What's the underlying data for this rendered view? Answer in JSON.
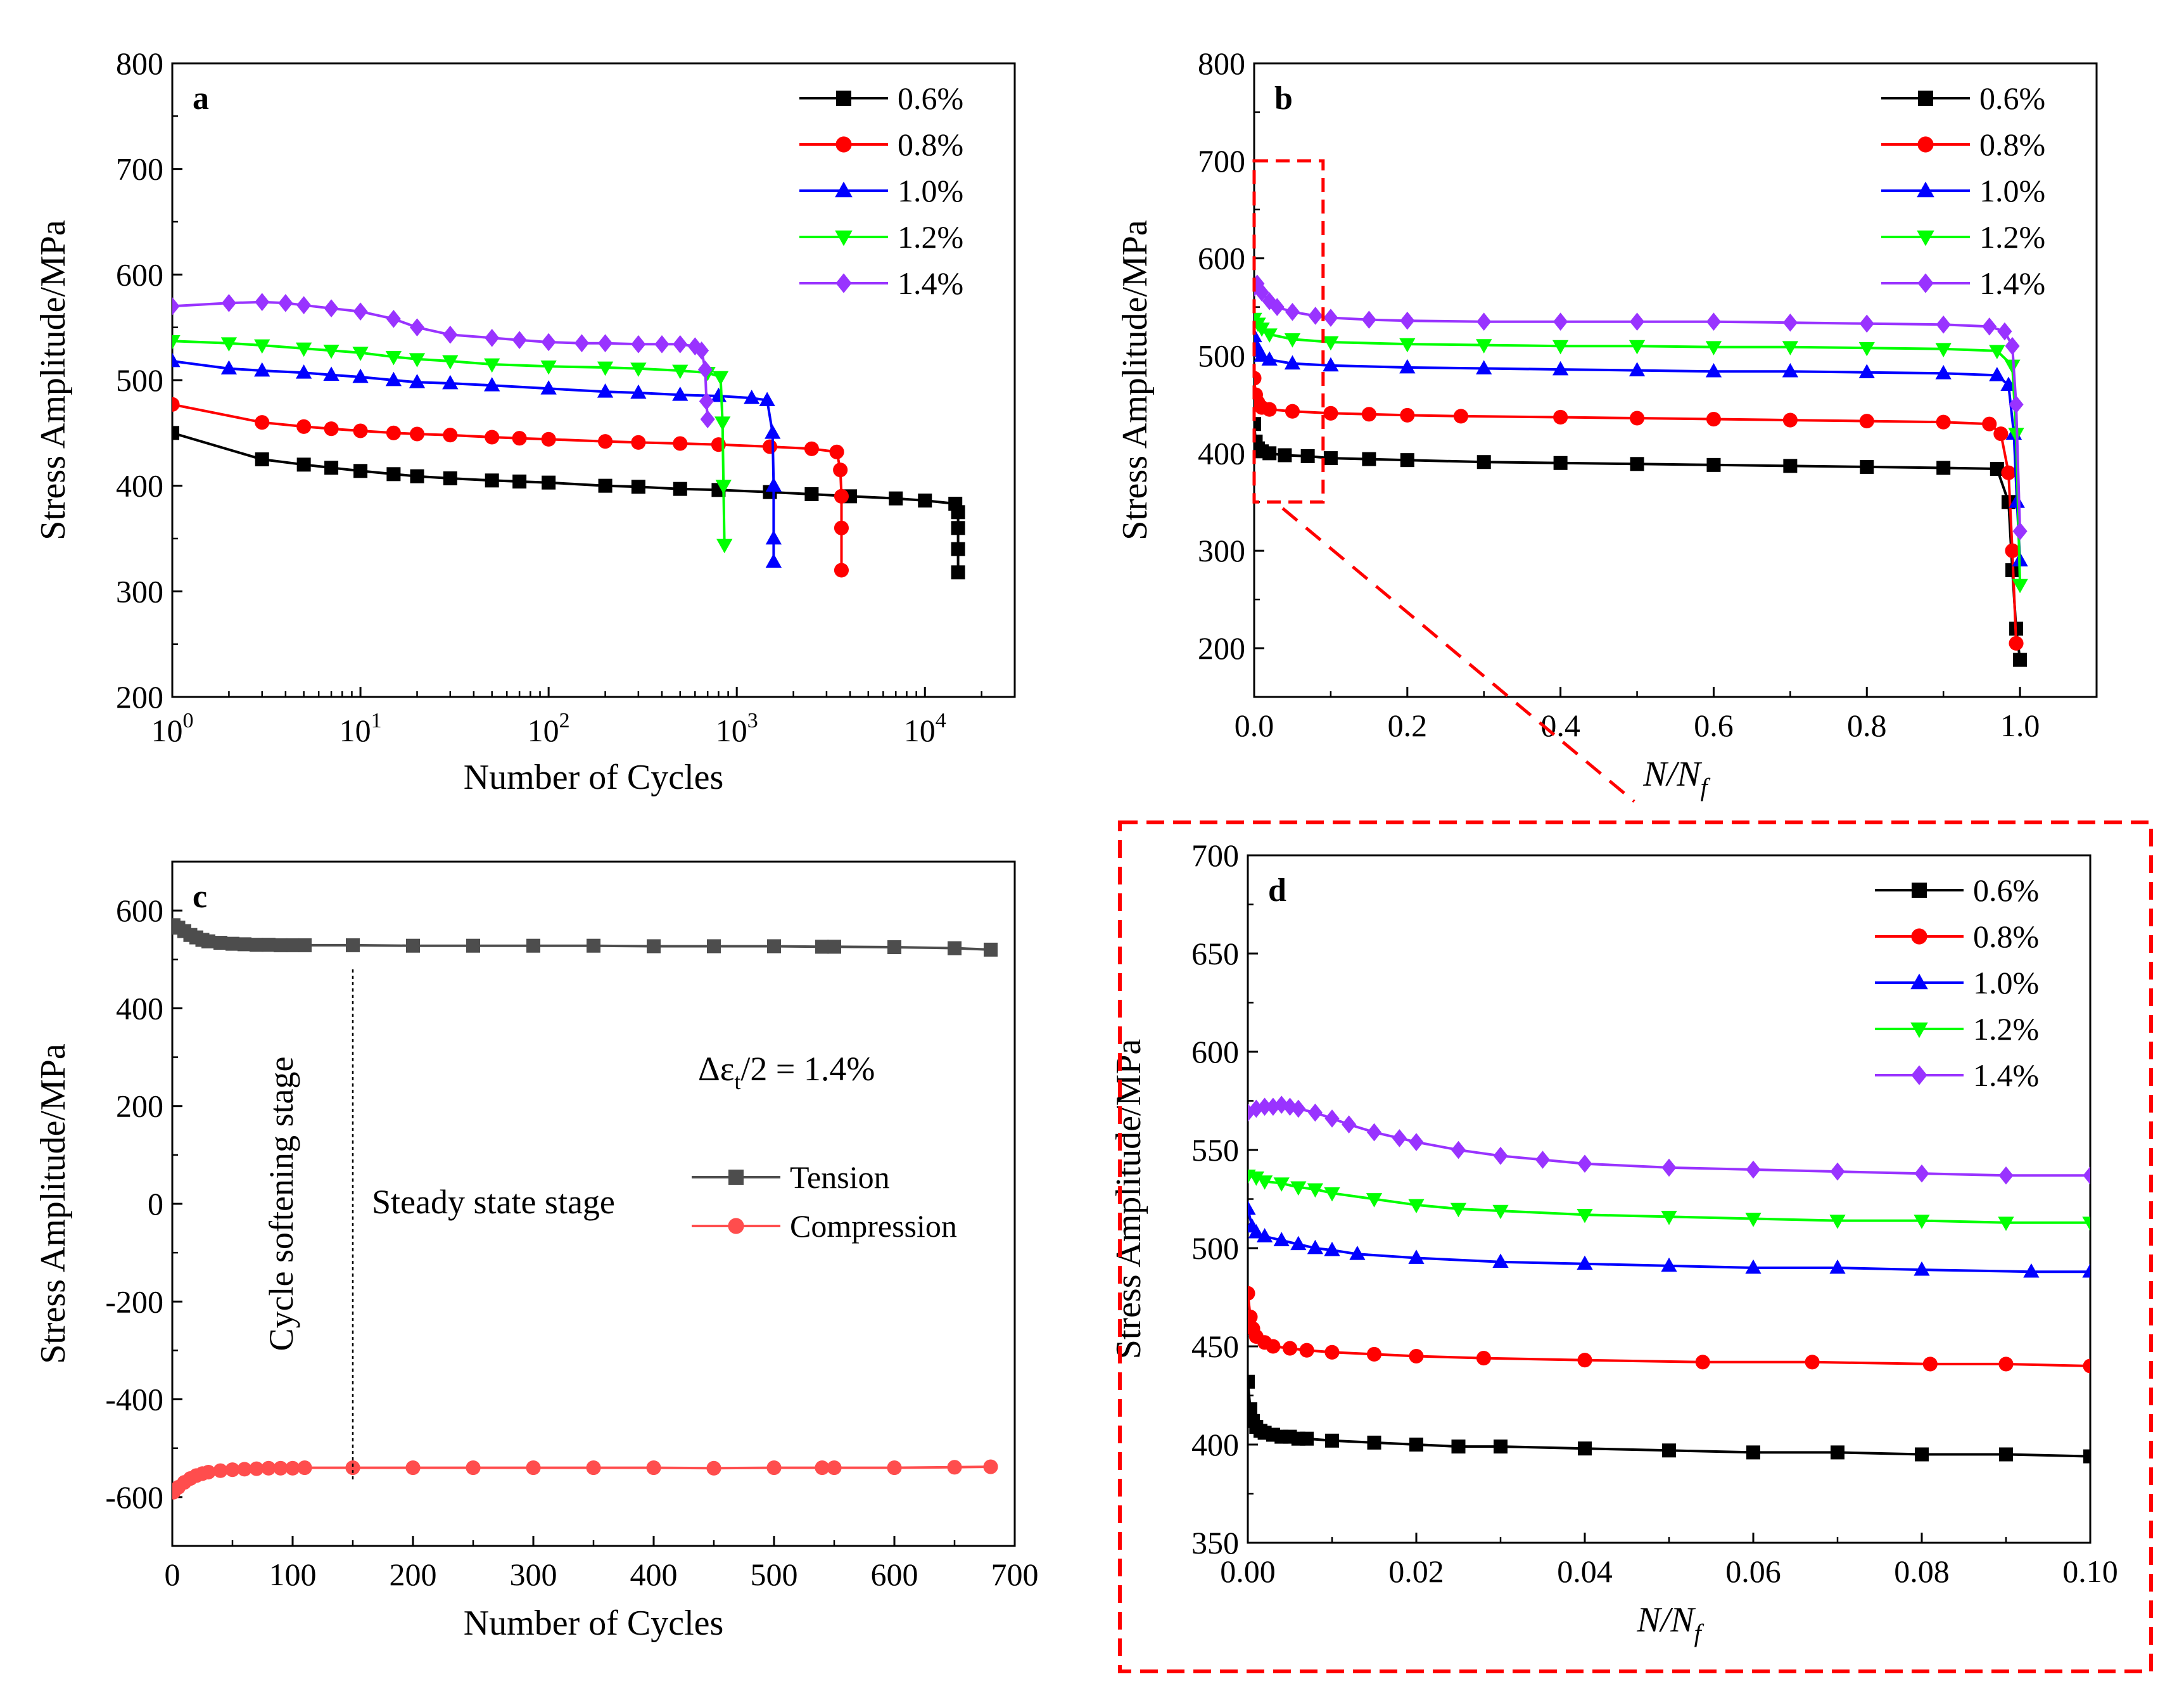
{
  "figure": {
    "zoom_style": {
      "color": "#ff0000"
    }
  },
  "chart_data": [
    {
      "id": "a",
      "panel_label": "a",
      "type": "line",
      "xscale": "log",
      "xlim": [
        1,
        30000
      ],
      "ylim": [
        200,
        800
      ],
      "xlabel": "Number of Cycles",
      "ylabel": "Stress Amplitude/MPa",
      "yticks": [
        "200",
        "300",
        "400",
        "500",
        "600",
        "700",
        "800"
      ],
      "xticks": [
        {
          "base": "10",
          "exp": "0",
          "value": 1
        },
        {
          "base": "10",
          "exp": "1",
          "value": 10
        },
        {
          "base": "10",
          "exp": "2",
          "value": 100
        },
        {
          "base": "10",
          "exp": "3",
          "value": 1000
        },
        {
          "base": "10",
          "exp": "4",
          "value": 10000
        }
      ],
      "legend_position": "top-right",
      "series": [
        {
          "name": "0.6%",
          "color": "#000000",
          "marker": "square",
          "x": [
            1,
            3,
            5,
            7,
            10,
            15,
            20,
            30,
            50,
            70,
            100,
            200,
            300,
            500,
            800,
            1500,
            2500,
            4000,
            7000,
            10000,
            14500,
            15000,
            15000,
            15000,
            15000
          ],
          "y": [
            450,
            425,
            420,
            417,
            414,
            411,
            409,
            407,
            405,
            404,
            403,
            400,
            399,
            397,
            396,
            394,
            392,
            390,
            388,
            386,
            383,
            375,
            360,
            340,
            318
          ]
        },
        {
          "name": "0.8%",
          "color": "#ff0000",
          "marker": "circle",
          "x": [
            1,
            3,
            5,
            7,
            10,
            15,
            20,
            30,
            50,
            70,
            100,
            200,
            300,
            500,
            800,
            1500,
            2500,
            3400,
            3550,
            3600,
            3600,
            3600
          ],
          "y": [
            477,
            460,
            456,
            454,
            452,
            450,
            449,
            448,
            446,
            445,
            444,
            442,
            441,
            440,
            439,
            437,
            435,
            432,
            415,
            390,
            360,
            320
          ]
        },
        {
          "name": "1.0%",
          "color": "#0000ff",
          "marker": "triangle",
          "x": [
            1,
            2,
            3,
            5,
            7,
            10,
            15,
            20,
            30,
            50,
            100,
            200,
            300,
            500,
            800,
            1200,
            1450,
            1550,
            1570,
            1570,
            1570
          ],
          "y": [
            518,
            511,
            509,
            507,
            505,
            503,
            500,
            498,
            497,
            495,
            492,
            489,
            488,
            486,
            485,
            483,
            481,
            450,
            400,
            350,
            328
          ]
        },
        {
          "name": "1.2%",
          "color": "#00ff00",
          "marker": "triangle-down",
          "x": [
            1,
            2,
            3,
            5,
            7,
            10,
            15,
            20,
            30,
            50,
            100,
            200,
            300,
            500,
            700,
            820,
            840,
            850,
            860
          ],
          "y": [
            537,
            535,
            533,
            530,
            528,
            526,
            522,
            520,
            518,
            515,
            513,
            512,
            511,
            509,
            507,
            503,
            460,
            400,
            344
          ]
        },
        {
          "name": "1.4%",
          "color": "#9933ff",
          "marker": "diamond",
          "x": [
            1,
            2,
            3,
            4,
            5,
            7,
            10,
            15,
            20,
            30,
            50,
            70,
            100,
            150,
            200,
            300,
            400,
            500,
            600,
            650,
            680,
            690,
            700
          ],
          "y": [
            570,
            573,
            574,
            573,
            571,
            568,
            565,
            558,
            550,
            543,
            540,
            538,
            536,
            535,
            535,
            534,
            534,
            534,
            532,
            528,
            510,
            480,
            463
          ]
        }
      ]
    },
    {
      "id": "b",
      "panel_label": "b",
      "type": "line",
      "xlim": [
        0,
        1.1
      ],
      "ylim": [
        150,
        800
      ],
      "xlabel": "N/N",
      "xlabel_sub": "f",
      "ylabel": "Stress Amplitude/MPa",
      "yticks": [
        "200",
        "300",
        "400",
        "500",
        "600",
        "700",
        "800"
      ],
      "xticks": [
        "0.0",
        "0.2",
        "0.4",
        "0.6",
        "0.8",
        "1.0"
      ],
      "legend_position": "top-right",
      "zoom_box": {
        "x": [
          0,
          0.09
        ],
        "y": [
          350,
          700
        ]
      },
      "series": [
        {
          "name": "0.6%",
          "color": "#000000",
          "marker": "square",
          "x": [
            0,
            0.002,
            0.005,
            0.01,
            0.02,
            0.04,
            0.07,
            0.1,
            0.15,
            0.2,
            0.3,
            0.4,
            0.5,
            0.6,
            0.7,
            0.8,
            0.9,
            0.97,
            0.985,
            0.99,
            0.995,
            1.0
          ],
          "y": [
            430,
            412,
            405,
            402,
            400,
            398,
            397,
            395,
            394,
            393,
            391,
            390,
            389,
            388,
            387,
            386,
            385,
            384,
            350,
            280,
            220,
            188
          ]
        },
        {
          "name": "0.8%",
          "color": "#ff0000",
          "marker": "circle",
          "x": [
            0,
            0.002,
            0.005,
            0.01,
            0.02,
            0.05,
            0.1,
            0.15,
            0.2,
            0.27,
            0.4,
            0.5,
            0.6,
            0.7,
            0.8,
            0.9,
            0.96,
            0.975,
            0.985,
            0.99,
            0.995
          ],
          "y": [
            477,
            460,
            452,
            447,
            445,
            443,
            441,
            440,
            439,
            438,
            437,
            436,
            435,
            434,
            433,
            432,
            430,
            420,
            380,
            300,
            205
          ]
        },
        {
          "name": "1.0%",
          "color": "#0000ff",
          "marker": "triangle",
          "x": [
            0,
            0.003,
            0.006,
            0.01,
            0.02,
            0.05,
            0.1,
            0.2,
            0.3,
            0.4,
            0.5,
            0.6,
            0.7,
            0.8,
            0.9,
            0.97,
            0.985,
            0.992,
            0.996,
            1.0
          ],
          "y": [
            520,
            510,
            505,
            500,
            496,
            492,
            490,
            488,
            487,
            486,
            485,
            484,
            484,
            483,
            482,
            480,
            470,
            420,
            350,
            290
          ]
        },
        {
          "name": "1.2%",
          "color": "#00ff00",
          "marker": "triangle-down",
          "x": [
            0,
            0.005,
            0.01,
            0.02,
            0.05,
            0.1,
            0.2,
            0.3,
            0.4,
            0.5,
            0.6,
            0.7,
            0.8,
            0.9,
            0.97,
            0.99,
            0.995,
            1.0
          ],
          "y": [
            538,
            533,
            528,
            522,
            517,
            514,
            512,
            511,
            510,
            510,
            509,
            509,
            508,
            507,
            505,
            490,
            420,
            265
          ]
        },
        {
          "name": "1.4%",
          "color": "#9933ff",
          "marker": "diamond",
          "x": [
            0,
            0.004,
            0.01,
            0.02,
            0.03,
            0.05,
            0.08,
            0.1,
            0.15,
            0.2,
            0.3,
            0.4,
            0.5,
            0.6,
            0.7,
            0.8,
            0.9,
            0.96,
            0.98,
            0.99,
            0.995,
            1.0
          ],
          "y": [
            570,
            574,
            565,
            556,
            550,
            545,
            541,
            539,
            537,
            536,
            535,
            535,
            535,
            535,
            534,
            533,
            532,
            530,
            525,
            510,
            450,
            320
          ]
        }
      ]
    },
    {
      "id": "c",
      "panel_label": "c",
      "type": "line",
      "xlim": [
        0,
        700
      ],
      "ylim": [
        -700,
        700
      ],
      "xlabel": "Number of Cycles",
      "ylabel": "Stress Amplitude/MPa",
      "yticks": [
        "-600",
        "-400",
        "-200",
        "0",
        "200",
        "400",
        "600"
      ],
      "xticks": [
        "0",
        "100",
        "200",
        "300",
        "400",
        "500",
        "600",
        "700"
      ],
      "legend_position": "middle-right",
      "divider_x": 150,
      "annotations": {
        "stage1": "Cycle softening stage",
        "stage2": "Steady state stage",
        "strain_prefix": "Δε",
        "strain_sub": "t",
        "strain_suffix": "/2 = 1.4%"
      },
      "series": [
        {
          "name": "Tension",
          "color": "#4d4d4d",
          "marker": "square",
          "x": [
            1,
            5,
            10,
            15,
            20,
            25,
            30,
            40,
            50,
            60,
            70,
            80,
            90,
            100,
            110,
            150,
            200,
            250,
            300,
            350,
            400,
            450,
            500,
            540,
            550,
            600,
            650,
            680
          ],
          "y": [
            570,
            565,
            558,
            550,
            545,
            540,
            537,
            534,
            532,
            531,
            530,
            530,
            529,
            529,
            529,
            529,
            528,
            528,
            528,
            528,
            527,
            527,
            527,
            526,
            526,
            525,
            523,
            520
          ]
        },
        {
          "name": "Compression",
          "color": "#ff4d4d",
          "marker": "circle",
          "x": [
            1,
            5,
            10,
            15,
            20,
            25,
            30,
            40,
            50,
            60,
            70,
            80,
            90,
            100,
            110,
            150,
            200,
            250,
            300,
            350,
            400,
            450,
            500,
            540,
            550,
            600,
            650,
            680
          ],
          "y": [
            -590,
            -580,
            -570,
            -562,
            -556,
            -552,
            -549,
            -546,
            -544,
            -543,
            -542,
            -541,
            -541,
            -541,
            -540,
            -540,
            -540,
            -540,
            -540,
            -540,
            -540,
            -541,
            -540,
            -540,
            -540,
            -540,
            -539,
            -538
          ]
        }
      ]
    },
    {
      "id": "d",
      "panel_label": "d",
      "type": "line",
      "xlim": [
        0,
        0.1
      ],
      "ylim": [
        350,
        700
      ],
      "xlabel": "N/N",
      "xlabel_sub": "f",
      "ylabel": "Stress Amplitude/MPa",
      "yticks": [
        "350",
        "400",
        "450",
        "500",
        "550",
        "600",
        "650",
        "700"
      ],
      "xticks": [
        "0.00",
        "0.02",
        "0.04",
        "0.06",
        "0.08",
        "0.10"
      ],
      "legend_position": "top-right",
      "series": [
        {
          "name": "0.6%",
          "color": "#000000",
          "marker": "square",
          "x": [
            0,
            0.0003,
            0.0006,
            0.001,
            0.0015,
            0.002,
            0.003,
            0.004,
            0.005,
            0.006,
            0.007,
            0.01,
            0.015,
            0.02,
            0.025,
            0.03,
            0.04,
            0.05,
            0.06,
            0.07,
            0.08,
            0.09,
            0.1
          ],
          "y": [
            432,
            418,
            412,
            409,
            407,
            406,
            405,
            404,
            404,
            403,
            403,
            402,
            401,
            400,
            399,
            399,
            398,
            397,
            396,
            396,
            395,
            395,
            394
          ]
        },
        {
          "name": "0.8%",
          "color": "#ff0000",
          "marker": "circle",
          "x": [
            0,
            0.0003,
            0.0006,
            0.001,
            0.002,
            0.003,
            0.005,
            0.007,
            0.01,
            0.015,
            0.02,
            0.028,
            0.04,
            0.054,
            0.067,
            0.081,
            0.09,
            0.1
          ],
          "y": [
            477,
            465,
            459,
            455,
            452,
            450,
            449,
            448,
            447,
            446,
            445,
            444,
            443,
            442,
            442,
            441,
            441,
            440
          ]
        },
        {
          "name": "1.0%",
          "color": "#0000ff",
          "marker": "triangle",
          "x": [
            0,
            0.0005,
            0.001,
            0.002,
            0.004,
            0.006,
            0.008,
            0.01,
            0.013,
            0.02,
            0.03,
            0.04,
            0.05,
            0.06,
            0.07,
            0.08,
            0.093,
            0.1
          ],
          "y": [
            520,
            511,
            508,
            506,
            504,
            502,
            500,
            499,
            497,
            495,
            493,
            492,
            491,
            490,
            490,
            489,
            488,
            488
          ]
        },
        {
          "name": "1.2%",
          "color": "#00ff00",
          "marker": "triangle-down",
          "x": [
            0,
            0.001,
            0.002,
            0.004,
            0.006,
            0.008,
            0.01,
            0.015,
            0.02,
            0.025,
            0.03,
            0.04,
            0.05,
            0.06,
            0.07,
            0.08,
            0.09,
            0.1
          ],
          "y": [
            537,
            536,
            534,
            533,
            531,
            530,
            528,
            525,
            522,
            520,
            519,
            517,
            516,
            515,
            514,
            514,
            513,
            513
          ]
        },
        {
          "name": "1.4%",
          "color": "#9933ff",
          "marker": "diamond",
          "x": [
            0,
            0.001,
            0.002,
            0.003,
            0.004,
            0.005,
            0.006,
            0.008,
            0.01,
            0.012,
            0.015,
            0.018,
            0.02,
            0.025,
            0.03,
            0.035,
            0.04,
            0.05,
            0.06,
            0.07,
            0.08,
            0.09,
            0.1
          ],
          "y": [
            569,
            571,
            572,
            572,
            573,
            572,
            571,
            569,
            566,
            563,
            559,
            556,
            554,
            550,
            547,
            545,
            543,
            541,
            540,
            539,
            538,
            537,
            537
          ]
        }
      ]
    }
  ]
}
